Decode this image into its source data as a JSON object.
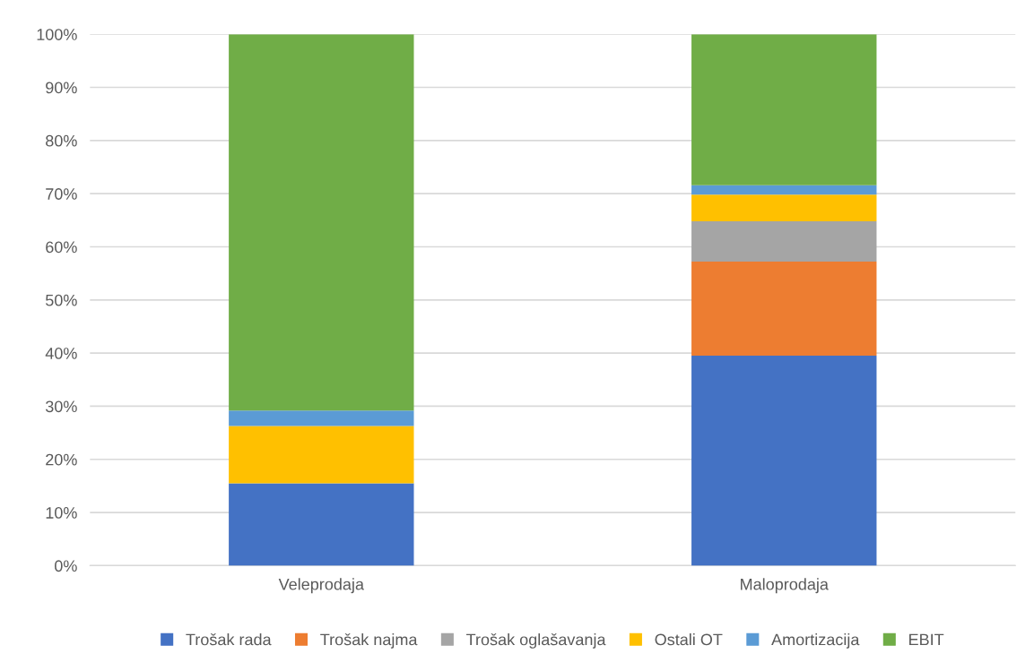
{
  "chart_data": {
    "type": "bar",
    "stacked": true,
    "categories": [
      "Veleprodaja",
      "Maloprodaja"
    ],
    "series": [
      {
        "name": "Trošak rada",
        "color": "#4472c4",
        "values": [
          15.5,
          39.5
        ]
      },
      {
        "name": "Trošak najma",
        "color": "#ed7d31",
        "values": [
          0,
          17.7
        ]
      },
      {
        "name": "Trošak oglašavanja",
        "color": "#a5a5a5",
        "values": [
          0,
          7.6
        ]
      },
      {
        "name": "Ostali OT",
        "color": "#ffc000",
        "values": [
          10.8,
          5.0
        ]
      },
      {
        "name": "Amortizacija",
        "color": "#5b9bd5",
        "values": [
          2.9,
          1.8
        ]
      },
      {
        "name": "EBIT",
        "color": "#70ad47",
        "values": [
          70.8,
          28.4
        ]
      }
    ],
    "ylim": [
      0,
      100
    ],
    "yticks": [
      {
        "value": 0,
        "label": "0%"
      },
      {
        "value": 10,
        "label": "10%"
      },
      {
        "value": 20,
        "label": "20%"
      },
      {
        "value": 30,
        "label": "30%"
      },
      {
        "value": 40,
        "label": "40%"
      },
      {
        "value": 50,
        "label": "50%"
      },
      {
        "value": 60,
        "label": "60%"
      },
      {
        "value": 70,
        "label": "70%"
      },
      {
        "value": 80,
        "label": "80%"
      },
      {
        "value": 90,
        "label": "90%"
      },
      {
        "value": 100,
        "label": "100%"
      }
    ],
    "grid": "y",
    "legend": "bottom"
  }
}
